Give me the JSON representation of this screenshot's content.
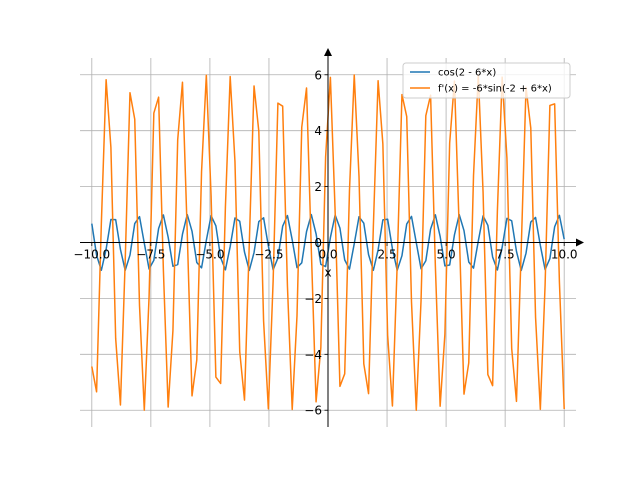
{
  "chart_data": {
    "type": "line",
    "xlabel": "x",
    "ylabel": "",
    "xlim": [
      -10.5,
      10.5
    ],
    "ylim": [
      -6.6,
      6.6
    ],
    "grid": true,
    "legend_position": "top-right",
    "x_ticks": [
      -10.0,
      -7.5,
      -5.0,
      -2.5,
      0.0,
      2.5,
      5.0,
      7.5,
      10.0
    ],
    "x_tick_labels": [
      "−10.0",
      "−7.5",
      "−5.0",
      "−2.5",
      "0.0",
      "2.5",
      "5.0",
      "7.5",
      "10.0"
    ],
    "y_ticks": [
      -6,
      -4,
      -2,
      0,
      2,
      4,
      6
    ],
    "y_tick_labels": [
      "−6",
      "−4",
      "−2",
      "0",
      "2",
      "4",
      "6"
    ],
    "x_range": [
      -10,
      10
    ],
    "sample_count": 100,
    "series": [
      {
        "name": "cos(2 - 6*x)",
        "color": "#1f77b4"
      },
      {
        "name": "f'(x) = -6*sin(-2 + 6*x)",
        "color": "#ff7f0e"
      }
    ]
  }
}
